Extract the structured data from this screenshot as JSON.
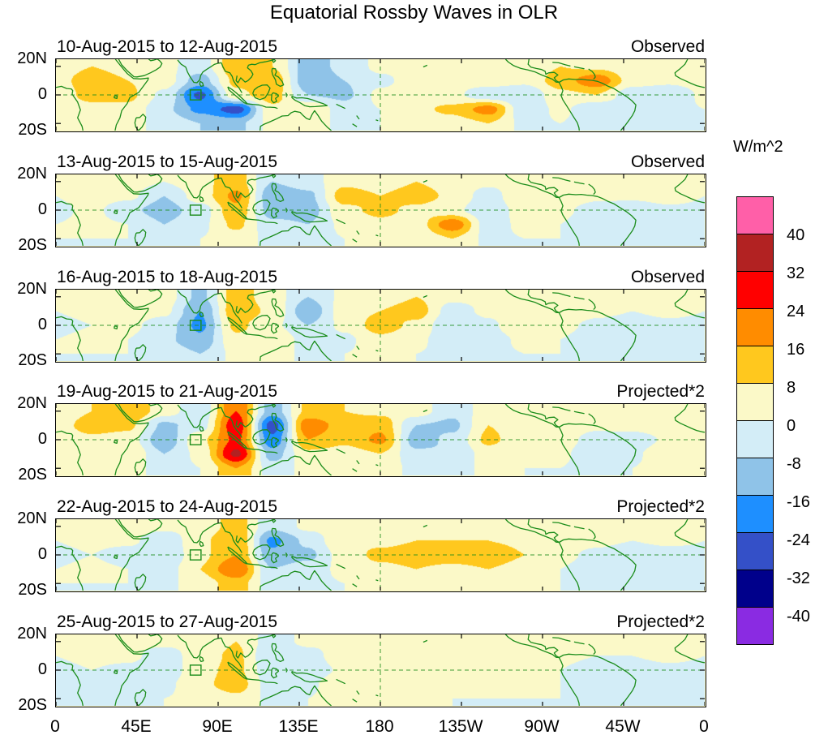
{
  "figure": {
    "title": "Equatorial Rossby Waves in OLR",
    "colorbar_title": "W/m^2"
  },
  "chart_data": {
    "type": "heatmap",
    "title": "Equatorial Rossby Waves in OLR",
    "units": "W/m^2",
    "x_tick_labels": [
      "0",
      "45E",
      "90E",
      "135E",
      "180",
      "135W",
      "90W",
      "45W",
      "0"
    ],
    "y_tick_labels": [
      "20N",
      "0",
      "20S"
    ],
    "colorbar_tick_labels": [
      "40",
      "32",
      "24",
      "16",
      "8",
      "0",
      "-8",
      "-16",
      "-24",
      "-32",
      "-40"
    ],
    "levels": [
      -40,
      -32,
      -24,
      -16,
      -8,
      0,
      8,
      16,
      24,
      32,
      40
    ],
    "palette_low_to_high": [
      "#8a2be2",
      "#00008b",
      "#3450c8",
      "#1e8fff",
      "#8fc3e8",
      "#d3edf7",
      "#fbf9c8",
      "#ffc81e",
      "#ff8c00",
      "#ff0000",
      "#b22222",
      "#ff5fa8"
    ],
    "map_outline_color": "#1a8c1a",
    "lon_grid_deg": [
      0,
      20,
      40,
      60,
      80,
      100,
      120,
      140,
      160,
      180,
      200,
      220,
      240,
      260,
      280,
      300,
      320,
      340,
      360
    ],
    "lat_grid_deg": [
      20,
      10,
      0,
      -10,
      -20
    ],
    "lon_range_deg": [
      0,
      360
    ],
    "lat_range_deg": [
      -25,
      25
    ],
    "region_box": {
      "lon_min": 74.5,
      "lon_max": 80.5,
      "lat_min": -3.5,
      "lat_max": 3.5
    },
    "panels": [
      {
        "date_label": "10-Aug-2015 to 12-Aug-2015",
        "type_label": "Observed",
        "values_wm2": [
          [
            2,
            8,
            4,
            2,
            -4,
            14,
            8,
            -12,
            -6,
            2,
            2,
            4,
            2,
            2,
            8,
            6,
            2,
            2,
            2
          ],
          [
            4,
            14,
            8,
            4,
            -12,
            10,
            14,
            -14,
            -8,
            -2,
            4,
            2,
            4,
            2,
            12,
            22,
            4,
            2,
            4
          ],
          [
            2,
            12,
            10,
            -2,
            -26,
            6,
            12,
            -8,
            -10,
            2,
            4,
            2,
            -6,
            -8,
            6,
            8,
            -6,
            -8,
            2
          ],
          [
            0,
            4,
            6,
            -6,
            -18,
            -28,
            6,
            8,
            -4,
            0,
            6,
            10,
            20,
            -6,
            2,
            -8,
            -4,
            -2,
            0
          ],
          [
            0,
            2,
            2,
            -2,
            -8,
            -10,
            2,
            4,
            -2,
            0,
            2,
            4,
            8,
            -2,
            0,
            -4,
            -2,
            0,
            0
          ]
        ]
      },
      {
        "date_label": "13-Aug-2015 to 15-Aug-2015",
        "type_label": "Observed",
        "values_wm2": [
          [
            2,
            2,
            4,
            0,
            6,
            12,
            -8,
            -4,
            6,
            4,
            8,
            4,
            2,
            4,
            6,
            4,
            4,
            6,
            2
          ],
          [
            0,
            4,
            2,
            -8,
            4,
            18,
            -14,
            -10,
            12,
            8,
            12,
            6,
            -4,
            8,
            6,
            2,
            2,
            4,
            0
          ],
          [
            -2,
            2,
            -6,
            -12,
            -4,
            14,
            -12,
            -12,
            6,
            10,
            6,
            2,
            -6,
            4,
            2,
            -4,
            -6,
            -2,
            -2
          ],
          [
            0,
            2,
            0,
            -8,
            -2,
            10,
            -6,
            -8,
            2,
            6,
            4,
            22,
            -4,
            2,
            0,
            -6,
            -4,
            0,
            0
          ],
          [
            0,
            0,
            0,
            -4,
            0,
            4,
            -2,
            -4,
            0,
            2,
            2,
            8,
            -2,
            0,
            0,
            -4,
            -2,
            0,
            0
          ]
        ]
      },
      {
        "date_label": "16-Aug-2015 to 18-Aug-2015",
        "type_label": "Observed",
        "values_wm2": [
          [
            2,
            2,
            2,
            4,
            -10,
            12,
            4,
            -8,
            2,
            4,
            8,
            2,
            2,
            2,
            4,
            2,
            2,
            2,
            2
          ],
          [
            0,
            2,
            4,
            2,
            -16,
            14,
            6,
            -14,
            4,
            8,
            12,
            -4,
            2,
            4,
            6,
            2,
            0,
            2,
            0
          ],
          [
            -2,
            0,
            2,
            -4,
            -18,
            10,
            2,
            -8,
            2,
            12,
            6,
            -8,
            -2,
            8,
            2,
            -2,
            -4,
            -2,
            -2
          ],
          [
            0,
            2,
            0,
            -6,
            -14,
            6,
            8,
            -4,
            -2,
            6,
            2,
            -6,
            -4,
            2,
            0,
            -4,
            -2,
            0,
            0
          ],
          [
            0,
            0,
            0,
            -2,
            -8,
            2,
            4,
            -2,
            0,
            2,
            0,
            -2,
            -2,
            0,
            0,
            -2,
            0,
            0,
            0
          ]
        ]
      },
      {
        "date_label": "19-Aug-2015 to 21-Aug-2015",
        "type_label": "Projected*2",
        "values_wm2": [
          [
            2,
            8,
            16,
            4,
            -6,
            24,
            -12,
            10,
            8,
            6,
            4,
            -6,
            4,
            2,
            4,
            2,
            2,
            4,
            2
          ],
          [
            4,
            12,
            10,
            -10,
            -4,
            30,
            -28,
            22,
            12,
            14,
            -8,
            -10,
            8,
            4,
            6,
            2,
            4,
            6,
            4
          ],
          [
            2,
            6,
            4,
            -14,
            6,
            26,
            -22,
            16,
            10,
            18,
            -12,
            -6,
            10,
            2,
            4,
            -4,
            -6,
            2,
            2
          ],
          [
            0,
            4,
            8,
            -8,
            2,
            34,
            -12,
            6,
            4,
            8,
            -6,
            -8,
            4,
            0,
            2,
            -8,
            -2,
            8,
            0
          ],
          [
            0,
            2,
            4,
            -4,
            0,
            16,
            -4,
            2,
            2,
            4,
            -2,
            -4,
            2,
            0,
            0,
            -4,
            0,
            4,
            0
          ]
        ]
      },
      {
        "date_label": "22-Aug-2015 to 24-Aug-2015",
        "type_label": "Projected*2",
        "values_wm2": [
          [
            2,
            2,
            4,
            2,
            2,
            12,
            -6,
            2,
            4,
            4,
            4,
            4,
            4,
            4,
            2,
            2,
            2,
            2,
            2
          ],
          [
            0,
            2,
            2,
            -6,
            6,
            16,
            -18,
            -6,
            8,
            6,
            8,
            8,
            8,
            6,
            4,
            2,
            0,
            2,
            0
          ],
          [
            -2,
            0,
            -4,
            -8,
            6,
            16,
            -14,
            -10,
            4,
            10,
            12,
            12,
            14,
            8,
            2,
            -2,
            -6,
            -4,
            -2
          ],
          [
            0,
            2,
            0,
            -4,
            8,
            24,
            -8,
            -4,
            2,
            6,
            8,
            6,
            8,
            4,
            0,
            -4,
            -4,
            0,
            0
          ],
          [
            0,
            0,
            0,
            -2,
            4,
            12,
            -4,
            -2,
            0,
            2,
            4,
            2,
            4,
            2,
            0,
            -2,
            -2,
            0,
            0
          ]
        ]
      },
      {
        "date_label": "25-Aug-2015 to 27-Aug-2015",
        "type_label": "Projected*2",
        "values_wm2": [
          [
            2,
            2,
            2,
            2,
            2,
            8,
            -4,
            2,
            2,
            2,
            2,
            2,
            2,
            2,
            2,
            2,
            2,
            2,
            2
          ],
          [
            0,
            2,
            2,
            -4,
            4,
            10,
            -8,
            -4,
            6,
            4,
            6,
            4,
            4,
            4,
            2,
            0,
            0,
            2,
            0
          ],
          [
            -2,
            0,
            -2,
            -6,
            6,
            10,
            -6,
            -6,
            2,
            6,
            8,
            6,
            6,
            4,
            0,
            -4,
            -4,
            -2,
            -2
          ],
          [
            0,
            0,
            0,
            -2,
            6,
            12,
            -4,
            -2,
            8,
            4,
            4,
            2,
            2,
            2,
            0,
            -4,
            -2,
            0,
            0
          ],
          [
            0,
            0,
            0,
            0,
            2,
            6,
            -2,
            0,
            4,
            2,
            2,
            0,
            0,
            0,
            0,
            -2,
            0,
            0,
            0
          ]
        ]
      }
    ]
  }
}
